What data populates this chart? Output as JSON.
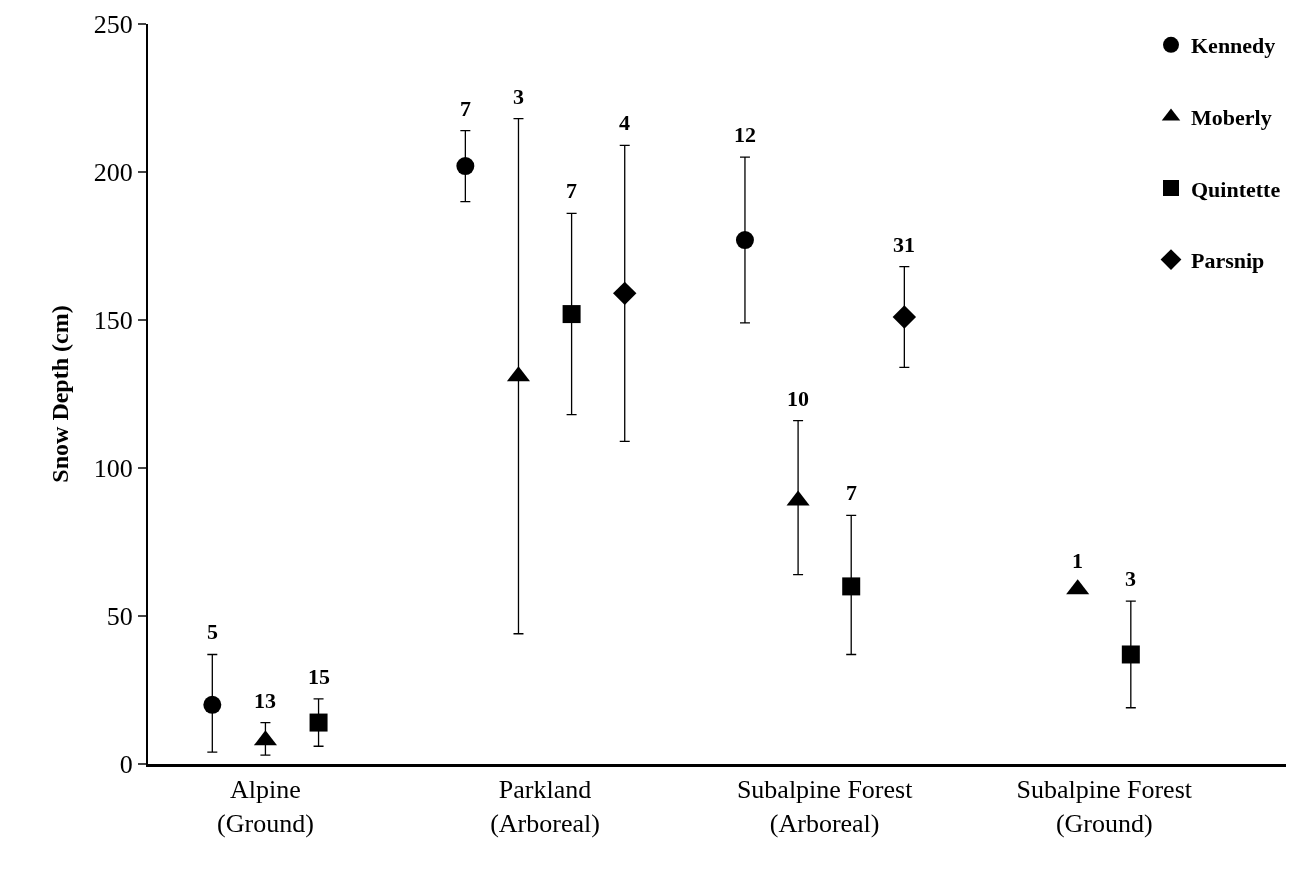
{
  "chart_data": {
    "type": "scatter",
    "ylabel": "Snow Depth (cm)",
    "categories": [
      "Alpine\n(Ground)",
      "Parkland\n(Arboreal)",
      "Subalpine Forest\n(Arboreal)",
      "Subalpine Forest\n(Ground)"
    ],
    "ylim": [
      0,
      250
    ],
    "yticks": [
      0,
      50,
      100,
      150,
      200,
      250
    ],
    "grid": false,
    "legend": "top right",
    "series": [
      {
        "name": "Kennedy",
        "color": "#000000",
        "marker": "circle",
        "values": [
          20,
          202,
          177,
          null
        ],
        "errors": [
          [
            4,
            37
          ],
          [
            190,
            214
          ],
          [
            149,
            205
          ],
          null
        ]
      },
      {
        "name": "Moberly",
        "color": "#000000",
        "marker": "triangle",
        "values": [
          8,
          131,
          89,
          59
        ],
        "errors": [
          [
            3,
            14
          ],
          [
            44,
            218
          ],
          [
            64,
            116
          ],
          null
        ]
      },
      {
        "name": "Quintette",
        "color": "#000000",
        "marker": "square",
        "values": [
          14,
          152,
          60,
          37
        ],
        "errors": [
          [
            6,
            22
          ],
          [
            118,
            186
          ],
          [
            37,
            84
          ],
          [
            19,
            55
          ]
        ]
      },
      {
        "name": "Parsnip",
        "color": "#000000",
        "marker": "diamond",
        "values": [
          null,
          159,
          151,
          null
        ],
        "errors": [
          null,
          [
            109,
            209
          ],
          [
            134,
            168
          ],
          null
        ]
      }
    ],
    "annotations": [
      "5",
      "13",
      "15",
      "7",
      "3",
      "7",
      "4",
      "12",
      "10",
      "7",
      "31",
      "1",
      "3"
    ]
  }
}
